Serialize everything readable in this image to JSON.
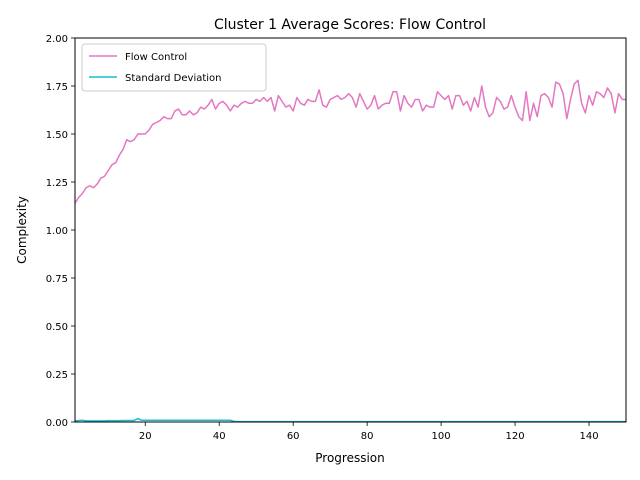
{
  "chart_data": {
    "type": "line",
    "title": "Cluster 1 Average Scores: Flow Control",
    "xlabel": "Progression",
    "ylabel": "Complexity",
    "xlim": [
      1,
      150
    ],
    "ylim": [
      0,
      2.0
    ],
    "xticks": [
      20,
      40,
      60,
      80,
      100,
      120,
      140
    ],
    "yticks": [
      0.0,
      0.25,
      0.5,
      0.75,
      1.0,
      1.25,
      1.5,
      1.75,
      2.0
    ],
    "ytick_labels": [
      "0.00",
      "0.25",
      "0.50",
      "0.75",
      "1.00",
      "1.25",
      "1.50",
      "1.75",
      "2.00"
    ],
    "legend_position": "upper-left",
    "grid": false,
    "series": [
      {
        "name": "Flow Control",
        "color": "#e377c2",
        "x": [
          1,
          2,
          3,
          4,
          5,
          6,
          7,
          8,
          9,
          10,
          11,
          12,
          13,
          14,
          15,
          16,
          17,
          18,
          19,
          20,
          21,
          22,
          23,
          24,
          25,
          26,
          27,
          28,
          29,
          30,
          31,
          32,
          33,
          34,
          35,
          36,
          37,
          38,
          39,
          40,
          41,
          42,
          43,
          44,
          45,
          46,
          47,
          48,
          49,
          50,
          51,
          52,
          53,
          54,
          55,
          56,
          57,
          58,
          59,
          60,
          61,
          62,
          63,
          64,
          65,
          66,
          67,
          68,
          69,
          70,
          71,
          72,
          73,
          74,
          75,
          76,
          77,
          78,
          79,
          80,
          81,
          82,
          83,
          84,
          85,
          86,
          87,
          88,
          89,
          90,
          91,
          92,
          93,
          94,
          95,
          96,
          97,
          98,
          99,
          100,
          101,
          102,
          103,
          104,
          105,
          106,
          107,
          108,
          109,
          110,
          111,
          112,
          113,
          114,
          115,
          116,
          117,
          118,
          119,
          120,
          121,
          122,
          123,
          124,
          125,
          126,
          127,
          128,
          129,
          130,
          131,
          132,
          133,
          134,
          135,
          136,
          137,
          138,
          139,
          140,
          141,
          142,
          143,
          144,
          145,
          146,
          147,
          148,
          149,
          150
        ],
        "y": [
          1.14,
          1.17,
          1.19,
          1.22,
          1.23,
          1.22,
          1.24,
          1.27,
          1.28,
          1.31,
          1.34,
          1.35,
          1.39,
          1.42,
          1.47,
          1.46,
          1.47,
          1.5,
          1.5,
          1.5,
          1.52,
          1.55,
          1.56,
          1.57,
          1.59,
          1.58,
          1.58,
          1.62,
          1.63,
          1.6,
          1.6,
          1.62,
          1.6,
          1.61,
          1.64,
          1.63,
          1.65,
          1.68,
          1.63,
          1.66,
          1.67,
          1.65,
          1.62,
          1.65,
          1.64,
          1.66,
          1.67,
          1.66,
          1.66,
          1.68,
          1.67,
          1.69,
          1.67,
          1.69,
          1.62,
          1.7,
          1.67,
          1.64,
          1.65,
          1.62,
          1.69,
          1.66,
          1.65,
          1.68,
          1.67,
          1.67,
          1.73,
          1.65,
          1.64,
          1.68,
          1.69,
          1.7,
          1.68,
          1.69,
          1.71,
          1.69,
          1.64,
          1.71,
          1.67,
          1.63,
          1.65,
          1.7,
          1.63,
          1.65,
          1.66,
          1.66,
          1.72,
          1.72,
          1.62,
          1.7,
          1.66,
          1.64,
          1.68,
          1.68,
          1.62,
          1.65,
          1.64,
          1.64,
          1.72,
          1.7,
          1.68,
          1.7,
          1.63,
          1.7,
          1.7,
          1.65,
          1.67,
          1.62,
          1.69,
          1.64,
          1.75,
          1.64,
          1.59,
          1.61,
          1.69,
          1.67,
          1.63,
          1.64,
          1.7,
          1.64,
          1.59,
          1.57,
          1.72,
          1.57,
          1.66,
          1.59,
          1.7,
          1.71,
          1.69,
          1.64,
          1.77,
          1.76,
          1.71,
          1.58,
          1.68,
          1.76,
          1.78,
          1.66,
          1.61,
          1.7,
          1.65,
          1.72,
          1.71,
          1.69,
          1.74,
          1.71,
          1.61,
          1.71,
          1.68,
          1.68
        ]
      },
      {
        "name": "Standard Deviation",
        "color": "#17becf",
        "x": [
          1,
          2,
          3,
          4,
          5,
          6,
          7,
          8,
          9,
          10,
          11,
          12,
          13,
          14,
          15,
          16,
          17,
          18,
          19,
          20,
          21,
          22,
          23,
          24,
          25,
          26,
          27,
          28,
          29,
          30,
          31,
          32,
          33,
          34,
          35,
          36,
          37,
          38,
          39,
          40,
          41,
          42,
          43,
          44,
          45,
          46,
          47,
          48,
          49,
          50,
          51,
          52,
          53,
          54,
          55,
          56,
          57,
          58,
          59,
          60,
          61,
          62,
          63,
          64,
          65,
          66,
          67,
          68,
          69,
          70,
          71,
          72,
          73,
          74,
          75,
          76,
          77,
          78,
          79,
          80,
          81,
          82,
          83,
          84,
          85,
          86,
          87,
          88,
          89,
          90,
          91,
          92,
          93,
          94,
          95,
          96,
          97,
          98,
          99,
          100,
          101,
          102,
          103,
          104,
          105,
          106,
          107,
          108,
          109,
          110,
          111,
          112,
          113,
          114,
          115,
          116,
          117,
          118,
          119,
          120,
          121,
          122,
          123,
          124,
          125,
          126,
          127,
          128,
          129,
          130,
          131,
          132,
          133,
          134,
          135,
          136,
          137,
          138,
          139,
          140,
          141,
          142,
          143,
          144,
          145,
          146,
          147,
          148,
          149,
          150
        ],
        "y": [
          0.005,
          0.008,
          0.009,
          0.006,
          0.006,
          0.006,
          0.006,
          0.006,
          0.006,
          0.007,
          0.007,
          0.007,
          0.007,
          0.008,
          0.008,
          0.008,
          0.008,
          0.018,
          0.009,
          0.009,
          0.009,
          0.009,
          0.009,
          0.009,
          0.009,
          0.009,
          0.009,
          0.009,
          0.009,
          0.009,
          0.009,
          0.009,
          0.009,
          0.009,
          0.009,
          0.009,
          0.009,
          0.009,
          0.009,
          0.009,
          0.009,
          0.009,
          0.009,
          0.003,
          0.002,
          0.002,
          0.002,
          0.002,
          0.002,
          0.002,
          0.002,
          0.002,
          0.002,
          0.002,
          0.002,
          0.002,
          0.002,
          0.002,
          0.002,
          0.002,
          0.002,
          0.002,
          0.002,
          0.002,
          0.002,
          0.002,
          0.002,
          0.002,
          0.002,
          0.002,
          0.002,
          0.002,
          0.002,
          0.002,
          0.002,
          0.002,
          0.002,
          0.002,
          0.002,
          0.002,
          0.002,
          0.002,
          0.002,
          0.002,
          0.002,
          0.002,
          0.002,
          0.002,
          0.002,
          0.002,
          0.002,
          0.002,
          0.002,
          0.002,
          0.002,
          0.002,
          0.002,
          0.002,
          0.002,
          0.002,
          0.002,
          0.002,
          0.002,
          0.002,
          0.002,
          0.002,
          0.002,
          0.002,
          0.002,
          0.002,
          0.002,
          0.002,
          0.002,
          0.002,
          0.002,
          0.002,
          0.002,
          0.002,
          0.002,
          0.002,
          0.002,
          0.002,
          0.002,
          0.002,
          0.002,
          0.002,
          0.002,
          0.002,
          0.002,
          0.002,
          0.002,
          0.002,
          0.002,
          0.002,
          0.002,
          0.002,
          0.002,
          0.002,
          0.002,
          0.002,
          0.002,
          0.002,
          0.002,
          0.002,
          0.002,
          0.002,
          0.002,
          0.002,
          0.002,
          0.002
        ]
      }
    ]
  }
}
